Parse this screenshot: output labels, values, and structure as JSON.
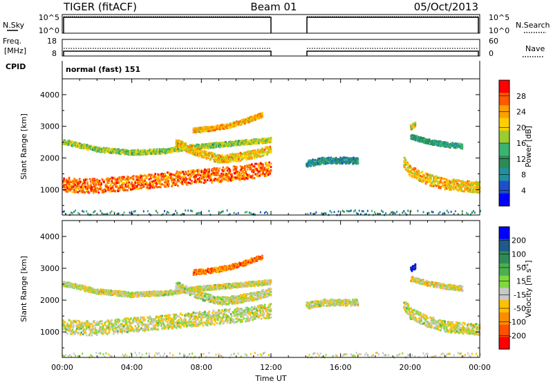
{
  "header": {
    "radar_title": "TIGER (fitACF)",
    "beam": "Beam 01",
    "date": "05/Oct/2013"
  },
  "sky_panel": {
    "left_label": "N.Sky",
    "left_ticks": [
      "10^5",
      "10^0"
    ],
    "right_ticks": [
      "10^5",
      "10^0"
    ],
    "right_label": "N.Search"
  },
  "freq_panel": {
    "left_label_line1": "Freq.",
    "left_label_line2": "[MHz]",
    "left_ticks": [
      "18",
      "8"
    ],
    "right_ticks": [
      "60",
      "0"
    ],
    "right_label": "Nave"
  },
  "cpid": {
    "label": "CPID",
    "value": "normal (fast) 151"
  },
  "chart_data": [
    {
      "type": "heatmap",
      "name": "power",
      "ylabel": "Slant Range [km]",
      "xlabel": "",
      "yticks": [
        "4000",
        "3000",
        "2000",
        "1000"
      ],
      "ylim": [
        200,
        4500
      ],
      "colorbar": {
        "label": "Power [dB]",
        "ticks": [
          "28",
          "24",
          "20",
          "16",
          "12",
          "8",
          "4"
        ],
        "colors": [
          "#ff0000",
          "#ff5a00",
          "#ff9f00",
          "#ffd000",
          "#9acd32",
          "#3cb371",
          "#2e8b57",
          "#1e90a0",
          "#1e50c8",
          "#0000ff"
        ]
      },
      "bands": [
        {
          "t": [
            0,
            1,
            2,
            3,
            4,
            5,
            6,
            7,
            8,
            9,
            10,
            11,
            12
          ],
          "r": [
            1200,
            1150,
            1150,
            1200,
            1250,
            1300,
            1350,
            1400,
            1450,
            1500,
            1550,
            1620,
            1700
          ],
          "w": 450,
          "level": 0.85
        },
        {
          "t": [
            0,
            2,
            4,
            6,
            7,
            8,
            9,
            10,
            11,
            12
          ],
          "r": [
            2550,
            2300,
            2200,
            2250,
            2350,
            2400,
            2450,
            2500,
            2550,
            2600
          ],
          "w": 150,
          "level": 0.55
        },
        {
          "t": [
            6.5,
            8,
            9,
            10,
            11,
            12
          ],
          "r": [
            2500,
            2150,
            2000,
            2050,
            2150,
            2300
          ],
          "w": 250,
          "level": 0.7
        },
        {
          "t": [
            7.5,
            8.5,
            9.5,
            10.5,
            11.5
          ],
          "r": [
            2900,
            2950,
            3050,
            3200,
            3400
          ],
          "w": 150,
          "level": 0.75
        },
        {
          "t": [
            14,
            14.5,
            15,
            15.5,
            16,
            17
          ],
          "r": [
            1850,
            1900,
            1950,
            1950,
            1950,
            1950
          ],
          "w": 200,
          "level": 0.3
        },
        {
          "t": [
            19.6,
            20,
            21,
            22,
            23,
            24
          ],
          "r": [
            1900,
            1600,
            1350,
            1200,
            1150,
            1100
          ],
          "w": 350,
          "level": 0.7
        },
        {
          "t": [
            20,
            21,
            22,
            23
          ],
          "r": [
            2700,
            2550,
            2450,
            2400
          ],
          "w": 150,
          "level": 0.35
        },
        {
          "t": [
            20,
            20.3
          ],
          "r": [
            3000,
            3100
          ],
          "w": 150,
          "level": 0.6
        }
      ]
    },
    {
      "type": "heatmap",
      "name": "velocity",
      "ylabel": "Slant Range [km]",
      "xlabel": "Time UT",
      "xticks": [
        "00:00",
        "04:00",
        "08:00",
        "12:00",
        "16:00",
        "20:00",
        "00:00"
      ],
      "xlim": [
        0,
        24
      ],
      "yticks": [
        "4000",
        "3000",
        "2000",
        "1000"
      ],
      "ylim": [
        200,
        4500
      ],
      "colorbar": {
        "label": "Velocity [m s^-1]",
        "ticks": [
          "200",
          "100",
          "50",
          "15",
          "-15",
          "-50",
          "-100",
          "-200"
        ],
        "colors": [
          "#0000ff",
          "#1e5a8c",
          "#2e8b57",
          "#4caf50",
          "#7fd83c",
          "#c8c8c8",
          "#ffc000",
          "#ff8c00",
          "#ff5000",
          "#ff0000"
        ]
      },
      "bands": [
        {
          "t": [
            0,
            1,
            2,
            3,
            4,
            5,
            6,
            7,
            8,
            9,
            10,
            11,
            12
          ],
          "r": [
            1200,
            1150,
            1150,
            1200,
            1250,
            1300,
            1350,
            1400,
            1450,
            1500,
            1550,
            1620,
            1700
          ],
          "w": 450,
          "level": 0.45
        },
        {
          "t": [
            0,
            2,
            4,
            6,
            7,
            8,
            9,
            10,
            11,
            12
          ],
          "r": [
            2550,
            2300,
            2200,
            2250,
            2350,
            2400,
            2450,
            2500,
            2550,
            2600
          ],
          "w": 150,
          "level": 0.45
        },
        {
          "t": [
            6.5,
            8,
            9,
            10,
            11,
            12
          ],
          "r": [
            2500,
            2150,
            2000,
            2050,
            2150,
            2300
          ],
          "w": 250,
          "level": 0.45
        },
        {
          "t": [
            7.5,
            8.5,
            9.5,
            10.5,
            11.5
          ],
          "r": [
            2900,
            2950,
            3050,
            3200,
            3400
          ],
          "w": 150,
          "level": 0.2
        },
        {
          "t": [
            14,
            14.5,
            15,
            15.5,
            16,
            17
          ],
          "r": [
            1850,
            1900,
            1950,
            1950,
            1950,
            1950
          ],
          "w": 200,
          "level": 0.45
        },
        {
          "t": [
            19.6,
            20,
            21,
            22,
            23,
            24
          ],
          "r": [
            1900,
            1600,
            1350,
            1200,
            1150,
            1100
          ],
          "w": 350,
          "level": 0.45
        },
        {
          "t": [
            20,
            21,
            22,
            23
          ],
          "r": [
            2700,
            2550,
            2450,
            2400
          ],
          "w": 150,
          "level": 0.4
        },
        {
          "t": [
            20,
            20.3
          ],
          "r": [
            3000,
            3100
          ],
          "w": 150,
          "level": 0.97
        }
      ]
    }
  ]
}
